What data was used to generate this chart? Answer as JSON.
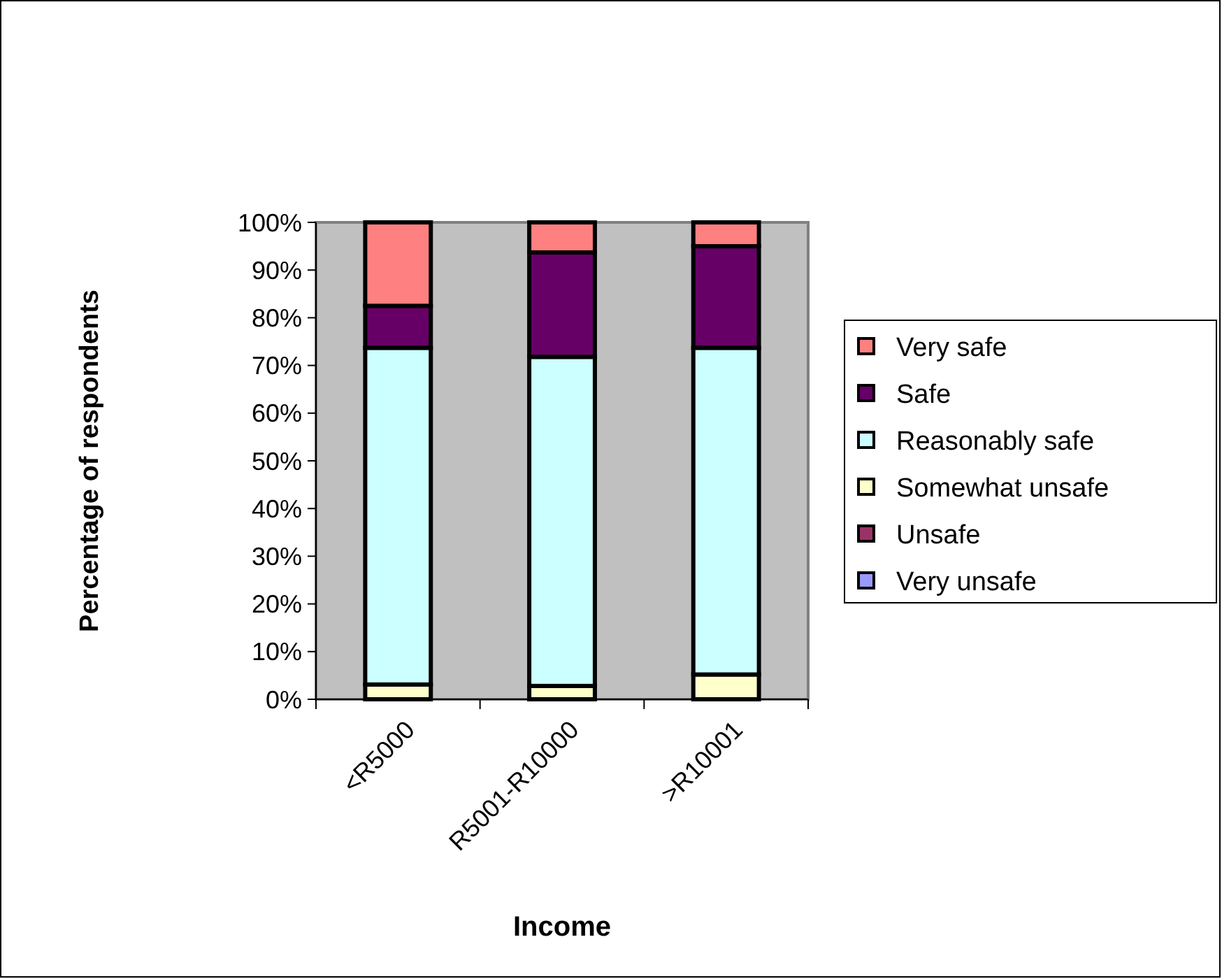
{
  "chart_data": {
    "type": "bar",
    "stacked": true,
    "xlabel": "Income",
    "ylabel": "Percentage of respondents",
    "categories": [
      "<R5000",
      "R5001-R10000",
      ">R10001"
    ],
    "series": [
      {
        "name": "Very unsafe",
        "color": "#9999ff",
        "values": [
          0,
          0,
          0
        ]
      },
      {
        "name": "Unsafe",
        "color": "#993366",
        "values": [
          0,
          0,
          0
        ]
      },
      {
        "name": "Somewhat unsafe",
        "color": "#ffffcc",
        "values": [
          3.1,
          2.8,
          5.2
        ]
      },
      {
        "name": "Reasonably safe",
        "color": "#ccffff",
        "values": [
          70.6,
          69.0,
          68.5
        ]
      },
      {
        "name": "Safe",
        "color": "#660066",
        "values": [
          8.8,
          21.9,
          21.3
        ]
      },
      {
        "name": "Very safe",
        "color": "#ff8080",
        "values": [
          17.5,
          6.3,
          5.0
        ]
      }
    ],
    "ylim": [
      0,
      100
    ],
    "yticks": [
      {
        "value": 0,
        "label": "0%"
      },
      {
        "value": 10,
        "label": "10%"
      },
      {
        "value": 20,
        "label": "20%"
      },
      {
        "value": 30,
        "label": "30%"
      },
      {
        "value": 40,
        "label": "40%"
      },
      {
        "value": 50,
        "label": "50%"
      },
      {
        "value": 60,
        "label": "60%"
      },
      {
        "value": 70,
        "label": "70%"
      },
      {
        "value": 80,
        "label": "80%"
      },
      {
        "value": 90,
        "label": "90%"
      },
      {
        "value": 100,
        "label": "100%"
      }
    ],
    "grid": false,
    "legend": "right"
  }
}
